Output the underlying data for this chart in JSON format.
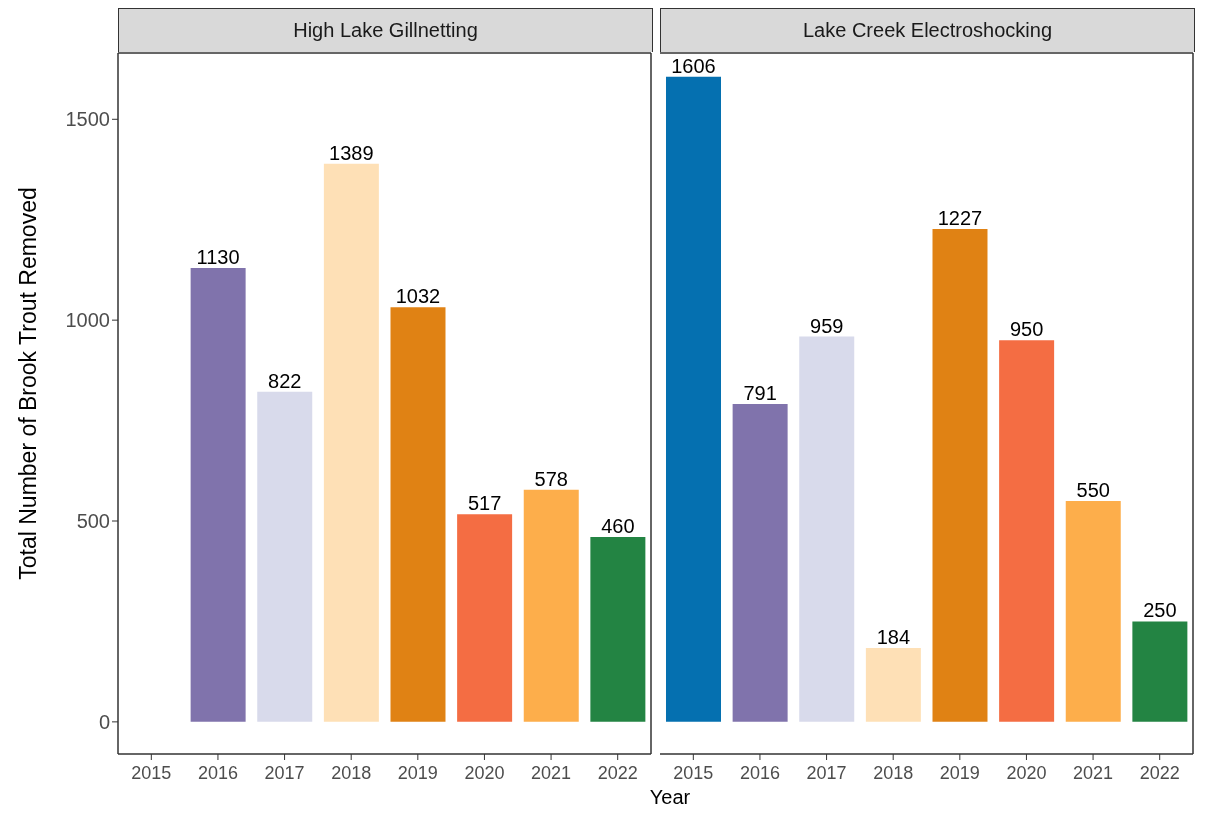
{
  "chart_data": [
    {
      "type": "bar",
      "title": "High Lake Gillnetting",
      "ylabel": "Total Number of Brook Trout Removed",
      "xlabel": "Year",
      "categories": [
        "2015",
        "2016",
        "2017",
        "2018",
        "2019",
        "2020",
        "2021",
        "2022"
      ],
      "values": [
        null,
        1130,
        822,
        1389,
        1032,
        517,
        578,
        460
      ],
      "colors": [
        "#0570b0",
        "#8073ac",
        "#d8daeb",
        "#fee0b6",
        "#e08214",
        "#f46d43",
        "#fdae4b",
        "#238443"
      ],
      "ylim": [
        -80,
        1665
      ],
      "yticks": [
        0,
        500,
        1000,
        1500
      ],
      "data_labels": true,
      "grid": false,
      "legend": false
    },
    {
      "type": "bar",
      "title": "Lake Creek Electroshocking",
      "categories": [
        "2015",
        "2016",
        "2017",
        "2018",
        "2019",
        "2020",
        "2021",
        "2022"
      ],
      "values": [
        1606,
        791,
        959,
        184,
        1227,
        950,
        550,
        250
      ],
      "colors": [
        "#0570b0",
        "#8073ac",
        "#d8daeb",
        "#fee0b6",
        "#e08214",
        "#f46d43",
        "#fdae4b",
        "#238443"
      ],
      "ylim": [
        -80,
        1665
      ],
      "yticks": [
        0,
        500,
        1000,
        1500
      ],
      "tick_labels": "x",
      "data_labels": true,
      "grid": false,
      "legend": false
    }
  ]
}
